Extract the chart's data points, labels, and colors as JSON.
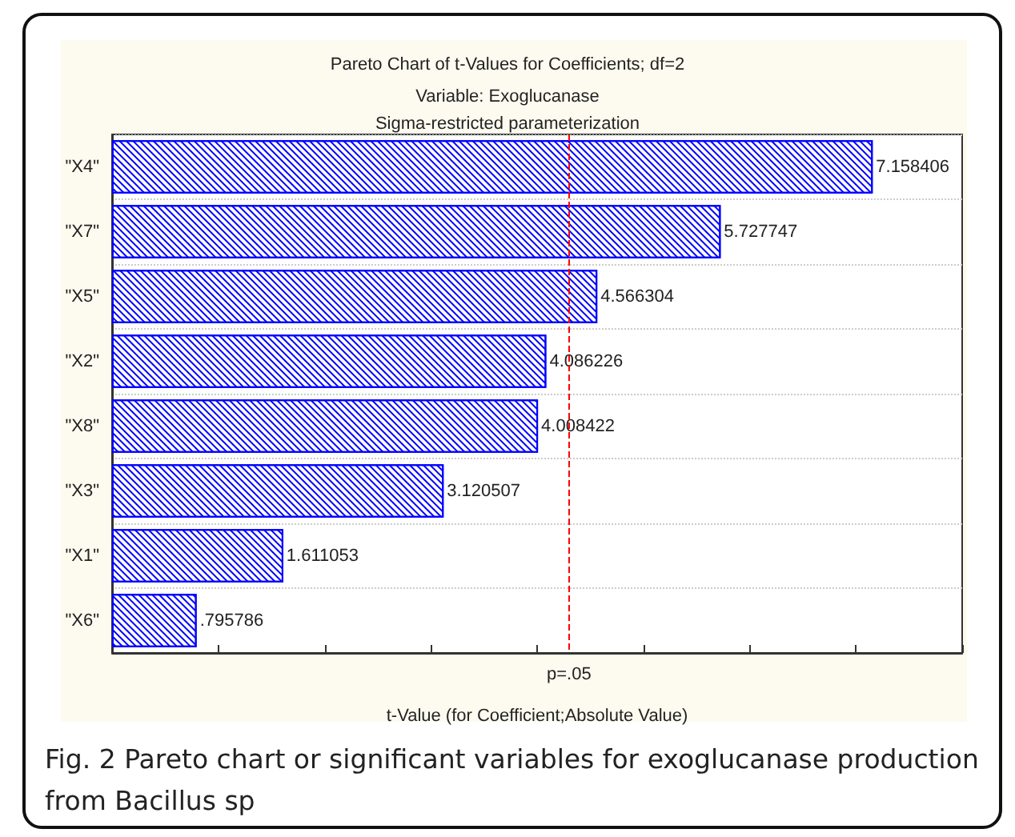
{
  "chart_data": {
    "type": "bar",
    "orientation": "horizontal",
    "title": "Pareto Chart of t-Values for Coefficients; df=2",
    "subtitle": "Variable: Exoglucanase\nSigma-restricted parameterization",
    "xlabel": "t-Value (for Coefficient;Absolute Value)",
    "categories": [
      "\"X4\"",
      "\"X7\"",
      "\"X5\"",
      "\"X2\"",
      "\"X8\"",
      "\"X3\"",
      "\"X1\"",
      "\"X6\""
    ],
    "values": [
      7.158406,
      5.727747,
      4.566304,
      4.086226,
      4.008422,
      3.120507,
      1.611053,
      0.795786
    ],
    "value_labels": [
      "7.158406",
      "5.727747",
      "4.566304",
      "4.086226",
      "4.008422",
      "3.120507",
      "1.611053",
      ".795786"
    ],
    "color": "#0000ff",
    "xlim": [
      0,
      8
    ],
    "xticks": [
      {
        "value": 0,
        "label": null
      },
      {
        "value": 1,
        "label": null
      },
      {
        "value": 2,
        "label": null
      },
      {
        "value": 3,
        "label": null
      },
      {
        "value": 4,
        "label": null
      },
      {
        "value": 5,
        "label": null
      },
      {
        "value": 6,
        "label": null
      },
      {
        "value": 7,
        "label": null
      },
      {
        "value": 8,
        "label": null
      }
    ],
    "tick_labels": "y",
    "grid": "y",
    "ref_lines": [
      {
        "axis": "x",
        "value": 4.303,
        "label": "p=.05",
        "color": "#ff0000",
        "line_style": "dashed"
      }
    ],
    "annotations": [
      "Fig. 2 Pareto chart or significant variables for exoglucanase production from Bacillus sp"
    ]
  }
}
